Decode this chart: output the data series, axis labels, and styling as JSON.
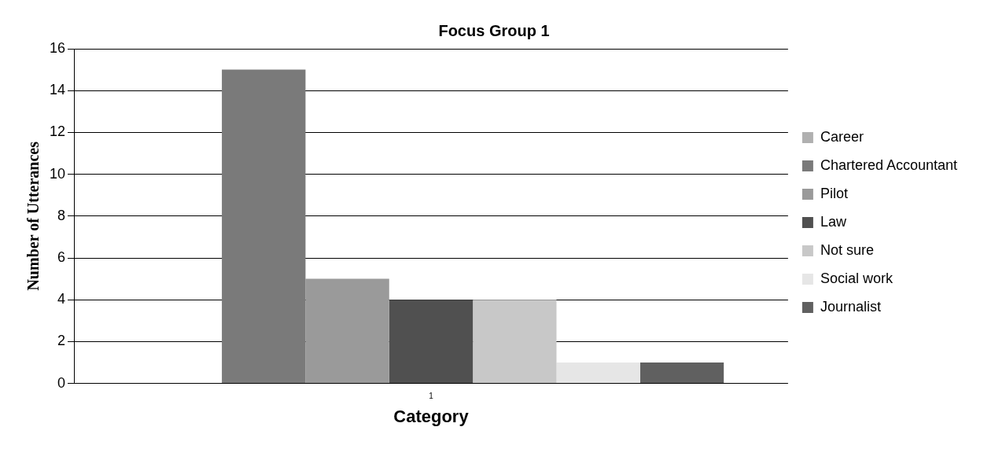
{
  "chart_data": {
    "type": "bar",
    "title": "Focus Group 1",
    "xlabel": "Category",
    "ylabel": "Number of Utterances",
    "categories": [
      "1"
    ],
    "series": [
      {
        "name": "Career",
        "color": "#b0b0b0",
        "values": [
          0
        ]
      },
      {
        "name": "Chartered Accountant",
        "color": "#7a7a7a",
        "values": [
          15
        ]
      },
      {
        "name": "Pilot",
        "color": "#9a9a9a",
        "values": [
          5
        ]
      },
      {
        "name": "Law",
        "color": "#505050",
        "values": [
          4
        ]
      },
      {
        "name": "Not sure",
        "color": "#c8c8c8",
        "values": [
          4
        ]
      },
      {
        "name": "Social work",
        "color": "#e6e6e6",
        "values": [
          1
        ]
      },
      {
        "name": "Journalist",
        "color": "#606060",
        "values": [
          1
        ]
      }
    ],
    "ylim": [
      0,
      16
    ],
    "yticks": [
      0,
      2,
      4,
      6,
      8,
      10,
      12,
      14,
      16
    ],
    "grid": "y",
    "legend": "right"
  }
}
